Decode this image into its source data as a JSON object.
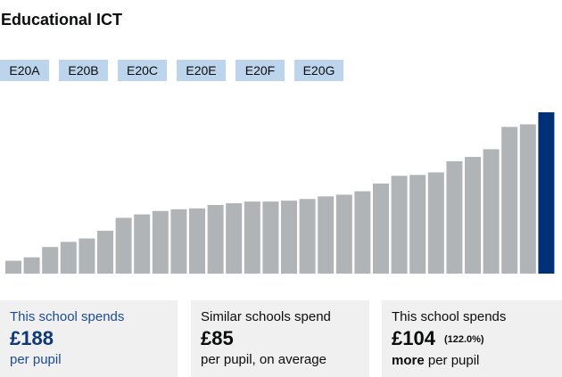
{
  "title": "Educational ICT",
  "tags": [
    "E20A",
    "E20B",
    "E20C",
    "E20E",
    "E20F",
    "E20G"
  ],
  "colors": {
    "bar": "#b1b4b6",
    "highlight": "#003078",
    "tag": "#bdd5ec",
    "card": "#f0f0f0"
  },
  "chart_data": {
    "type": "bar",
    "unit": "£ per pupil",
    "values": [
      15,
      19,
      31,
      37,
      41,
      50,
      65,
      69,
      73,
      75,
      76,
      80,
      82,
      84,
      84,
      85,
      87,
      90,
      92,
      96,
      105,
      114,
      115,
      118,
      131,
      136,
      145,
      171,
      174,
      188
    ],
    "highlight_index": 29,
    "sorted": "ascending",
    "ylim": [
      0,
      188
    ],
    "grid": false,
    "axes_visible": false
  },
  "cards": [
    {
      "line1": "This school spends",
      "value": "£188",
      "line3": "per pupil"
    },
    {
      "line1": "Similar schools spend",
      "value": "£85",
      "line3": "per pupil, on average"
    },
    {
      "line1": "This school spends",
      "value": "£104",
      "pct": "(122.0%)",
      "line3_bold": "more",
      "line3": " per pupil"
    }
  ]
}
